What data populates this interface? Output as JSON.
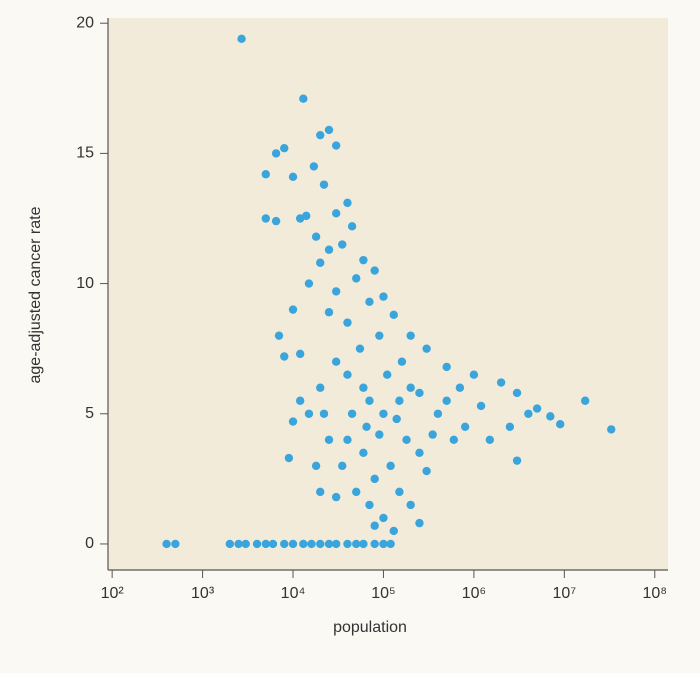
{
  "chart_data": {
    "type": "scatter",
    "x_label": "population",
    "y_label": "age-adjusted cancer rate",
    "log_x": true,
    "color": "#3aa5dc",
    "xlim": [
      90,
      140000000
    ],
    "ylim": [
      -1,
      20.2
    ],
    "xticks": [
      {
        "value": 100,
        "label": "10²"
      },
      {
        "value": 1000,
        "label": "10³"
      },
      {
        "value": 10000,
        "label": "10⁴"
      },
      {
        "value": 100000,
        "label": "10⁵"
      },
      {
        "value": 1000000,
        "label": "10⁶"
      },
      {
        "value": 10000000,
        "label": "10⁷"
      },
      {
        "value": 100000000,
        "label": "10⁸"
      }
    ],
    "yticks": [
      0,
      5,
      10,
      15,
      20
    ],
    "x": [
      400,
      500,
      2000,
      2500,
      3000,
      4000,
      5000,
      6000,
      8000,
      10000,
      13000,
      16000,
      20000,
      25000,
      30000,
      40000,
      50000,
      60000,
      80000,
      100000,
      120000,
      2700,
      13000,
      8000,
      6500,
      25000,
      20000,
      30000,
      5000,
      10000,
      17000,
      22000,
      40000,
      5000,
      6500,
      12000,
      14000,
      30000,
      45000,
      18000,
      25000,
      35000,
      60000,
      80000,
      20000,
      50000,
      15000,
      30000,
      100000,
      70000,
      130000,
      10000,
      25000,
      200000,
      7000,
      12000,
      8000,
      300000,
      500000,
      1000000,
      2000000,
      3000000,
      5000000,
      7000000,
      9000000,
      17000000,
      33000000,
      10000,
      9000,
      3000000,
      1500000,
      800000,
      400000,
      200000,
      150000,
      100000,
      60000,
      40000,
      30000,
      20000,
      15000,
      25000,
      35000,
      50000,
      70000,
      100000,
      80000,
      130000,
      250000,
      20000,
      30000,
      60000,
      90000,
      120000,
      180000,
      250000,
      350000,
      600000,
      45000,
      70000,
      110000,
      160000,
      55000,
      40000,
      90000,
      250000,
      500000,
      1200000,
      700000,
      2500000,
      4000000,
      18000,
      40000,
      80000,
      150000,
      300000,
      12000,
      22000,
      65000,
      140000,
      200000
    ],
    "values": [
      0,
      0,
      0,
      0,
      0,
      0,
      0,
      0,
      0,
      0,
      0,
      0,
      0,
      0,
      0,
      0,
      0,
      0,
      0,
      0,
      0,
      19.4,
      17.1,
      15.2,
      15,
      15.9,
      15.7,
      15.3,
      14.2,
      14.1,
      14.5,
      13.8,
      13.1,
      12.5,
      12.4,
      12.5,
      12.6,
      12.7,
      12.2,
      11.8,
      11.3,
      11.5,
      10.9,
      10.5,
      10.8,
      10.2,
      10,
      9.7,
      9.5,
      9.3,
      8.8,
      9,
      8.9,
      8,
      8,
      7.3,
      7.2,
      7.5,
      6.8,
      6.5,
      6.2,
      5.8,
      5.2,
      4.9,
      4.6,
      5.5,
      4.4,
      4.7,
      3.3,
      3.2,
      4,
      4.5,
      5,
      6,
      5.5,
      5,
      6,
      6.5,
      7,
      6,
      5,
      4,
      3,
      2,
      1.5,
      1,
      0.7,
      0.5,
      0.8,
      2,
      1.8,
      3.5,
      4.2,
      3,
      4,
      3.5,
      4.2,
      4,
      5,
      5.5,
      6.5,
      7,
      7.5,
      8.5,
      8,
      5.8,
      5.5,
      5.3,
      6,
      4.5,
      5,
      3,
      4,
      2.5,
      2,
      2.8,
      5.5,
      5,
      4.5,
      4.8,
      1.5
    ]
  }
}
